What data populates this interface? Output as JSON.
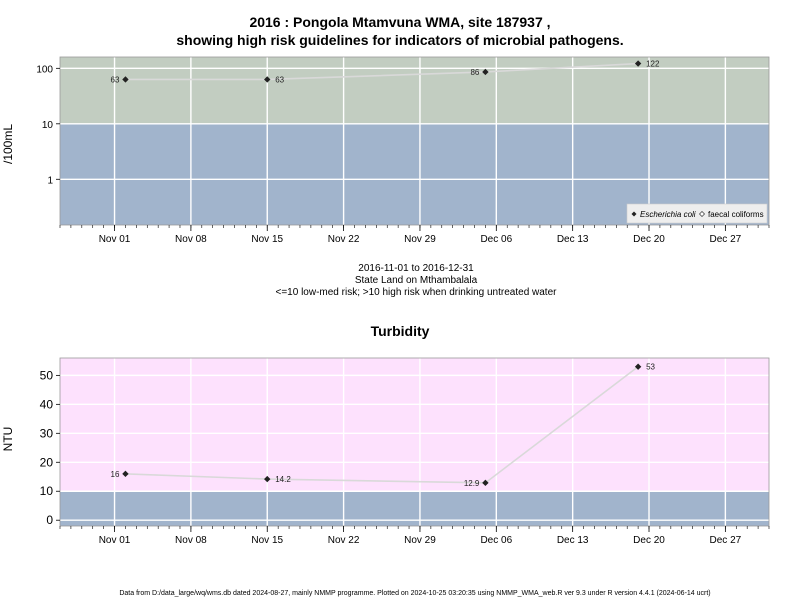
{
  "titles": {
    "line1": "2016 : Pongola Mtamvuna WMA, site 187937 ,",
    "line2": "showing high risk guidelines for indicators of microbial pathogens."
  },
  "caption": {
    "date_range": "2016-11-01 to 2016-12-31",
    "location": "State Land on Mthambalala",
    "risk_note": "<=10 low-med risk; >10 high risk when drinking untreated water"
  },
  "footer": "Data from D:/data_large/wq/wms.db dated 2024-08-27, mainly NMMP programme. Plotted on 2024-10-25 03:20:35 using NMMP_WMA_web.R ver 9.3 under R version 4.4.1 (2024-06-14 ucrt)",
  "colors": {
    "background_low": "#a1b4cc",
    "background_high_microbe": "#c2cdc1",
    "background_high_turbidity": "#fde1fd",
    "grid": "#ffffff",
    "line": "#d9d9d9",
    "marker": "#222222"
  },
  "chart_data": [
    {
      "type": "line",
      "title": "",
      "ylabel": "/100mL",
      "yscale": "log",
      "ylim": [
        0.15,
        160
      ],
      "threshold": 10,
      "x_axis": {
        "type": "date",
        "range": [
          "2016-10-27",
          "2016-12-31"
        ],
        "tick_dates": [
          "2016-11-01",
          "2016-11-08",
          "2016-11-15",
          "2016-11-22",
          "2016-11-29",
          "2016-12-06",
          "2016-12-13",
          "2016-12-20",
          "2016-12-27"
        ],
        "tick_labels": [
          "Nov 01",
          "Nov 08",
          "Nov 15",
          "Nov 22",
          "Nov 29",
          "Dec 06",
          "Dec 13",
          "Dec 20",
          "Dec 27"
        ]
      },
      "y_ticks": [
        1,
        10,
        100
      ],
      "y_tick_labels": [
        "1",
        "10",
        "100"
      ],
      "legend": {
        "position": "bottom-right",
        "entries": [
          {
            "name": "Escherichia coli",
            "marker": "filled-diamond",
            "italic": true
          },
          {
            "name": "faecal coliforms",
            "marker": "open-diamond",
            "italic": false
          }
        ]
      },
      "series": [
        {
          "name": "Escherichia coli",
          "x": [
            "2016-11-02",
            "2016-11-15",
            "2016-12-05",
            "2016-12-19"
          ],
          "y": [
            63,
            63,
            86,
            122
          ],
          "labels": [
            "63",
            "63",
            "86",
            "122"
          ],
          "label_side": [
            "left",
            "right",
            "left",
            "right"
          ]
        }
      ]
    },
    {
      "type": "line",
      "title": "Turbidity",
      "ylabel": "NTU",
      "yscale": "linear",
      "ylim": [
        -2,
        56
      ],
      "threshold": 10,
      "x_axis": {
        "type": "date",
        "range": [
          "2016-10-27",
          "2016-12-31"
        ],
        "tick_dates": [
          "2016-11-01",
          "2016-11-08",
          "2016-11-15",
          "2016-11-22",
          "2016-11-29",
          "2016-12-06",
          "2016-12-13",
          "2016-12-20",
          "2016-12-27"
        ],
        "tick_labels": [
          "Nov 01",
          "Nov 08",
          "Nov 15",
          "Nov 22",
          "Nov 29",
          "Dec 06",
          "Dec 13",
          "Dec 20",
          "Dec 27"
        ]
      },
      "y_ticks": [
        0,
        10,
        20,
        30,
        40,
        50
      ],
      "y_tick_labels": [
        "0",
        "10",
        "20",
        "30",
        "40",
        "50"
      ],
      "series": [
        {
          "name": "",
          "x": [
            "2016-11-02",
            "2016-11-15",
            "2016-12-05",
            "2016-12-19"
          ],
          "y": [
            16,
            14.2,
            12.9,
            53
          ],
          "labels": [
            "16",
            "14.2",
            "12.9",
            "53"
          ],
          "label_side": [
            "left",
            "right",
            "left",
            "right"
          ]
        }
      ]
    }
  ]
}
